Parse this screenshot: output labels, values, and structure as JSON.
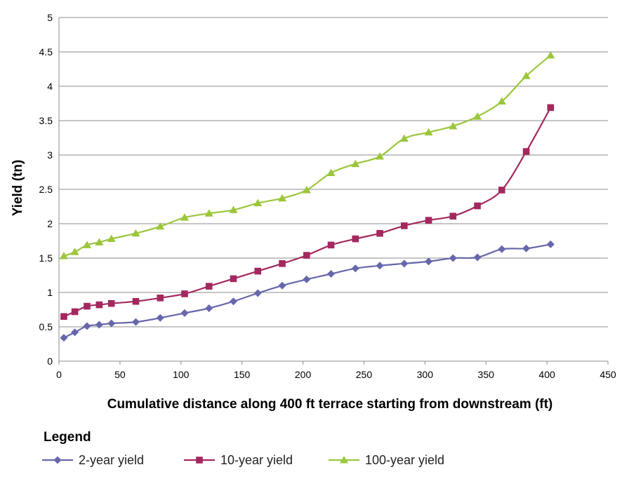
{
  "chart_data": {
    "type": "line",
    "title": "",
    "xlabel": "Cumulative distance along 400 ft terrace starting from downstream (ft)",
    "ylabel": "Yield (tn)",
    "xlim": [
      0,
      450
    ],
    "ylim": [
      0,
      5
    ],
    "x_ticks": [
      "0",
      "50",
      "100",
      "150",
      "200",
      "250",
      "300",
      "350",
      "400",
      "450"
    ],
    "y_ticks": [
      "0",
      "0.5",
      "1",
      "1.5",
      "2",
      "2.5",
      "3",
      "3.5",
      "4",
      "4.5",
      "5"
    ],
    "grid": "horizontal",
    "legend_title": "Legend",
    "legend_position": "bottom",
    "x": [
      4,
      13,
      23,
      33,
      43,
      63,
      83,
      103,
      123,
      143,
      163,
      183,
      203,
      223,
      243,
      263,
      283,
      303,
      323,
      343,
      363,
      383,
      403
    ],
    "series": [
      {
        "name": "2-year yield",
        "marker": "diamond",
        "color": "#6667ab",
        "values": [
          0.34,
          0.42,
          0.51,
          0.53,
          0.55,
          0.57,
          0.63,
          0.7,
          0.77,
          0.87,
          0.99,
          1.1,
          1.19,
          1.27,
          1.35,
          1.39,
          1.42,
          1.45,
          1.5,
          1.51,
          1.63,
          1.64,
          1.7
        ]
      },
      {
        "name": "10-year yield",
        "marker": "square",
        "color": "#a3285f",
        "values": [
          0.65,
          0.72,
          0.8,
          0.82,
          0.84,
          0.87,
          0.92,
          0.98,
          1.09,
          1.2,
          1.31,
          1.42,
          1.54,
          1.69,
          1.78,
          1.86,
          1.97,
          2.05,
          2.11,
          2.26,
          2.49,
          3.05,
          3.69
        ]
      },
      {
        "name": "100-year yield",
        "marker": "triangle",
        "color": "#9bc63b",
        "values": [
          1.53,
          1.59,
          1.69,
          1.73,
          1.78,
          1.86,
          1.96,
          2.09,
          2.15,
          2.2,
          2.3,
          2.37,
          2.49,
          2.74,
          2.87,
          2.98,
          3.24,
          3.33,
          3.42,
          3.56,
          3.78,
          4.15,
          4.45
        ]
      }
    ]
  }
}
